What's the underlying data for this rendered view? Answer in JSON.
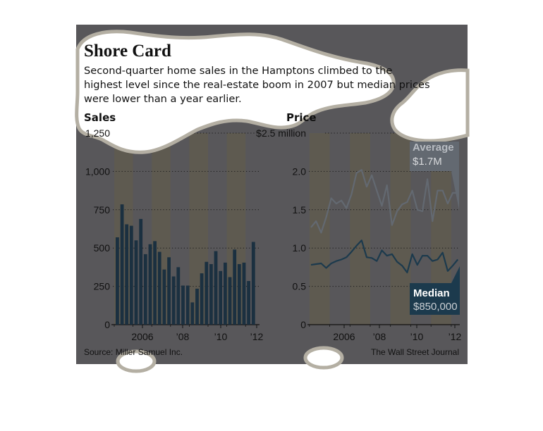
{
  "title": "Shore Card",
  "subtitle_lines": [
    "Second-quarter home sales in the Hamptons climbed to the",
    "highest level since the real-estate boom in 2007 but median prices",
    "were lower than a year earlier."
  ],
  "source": "Source: Miller Samuel Inc.",
  "credit": "The Wall Street Journal",
  "colors": {
    "panel_bg": "#58575a",
    "year_band": "#5e5a50",
    "bar": "#1b3040",
    "median_line": "#1c3a4d",
    "average_line": "#636971",
    "cloud": "#ffffff",
    "cloud_edge": "#b4afa3",
    "text": "#111111"
  },
  "x_tick_labels": [
    "2006",
    "’08",
    "’10",
    "’12"
  ],
  "chart_data": [
    {
      "type": "bar",
      "axis_title": "Sales",
      "y_tick_labels": [
        "0",
        "250",
        "500",
        "750",
        "1,000",
        "1,250"
      ],
      "ylim": [
        0,
        1250
      ],
      "grid": "dotted horizontal",
      "quarter_start": "2005 Q1",
      "quarter_end": "2012 Q2",
      "values": [
        570,
        785,
        655,
        645,
        550,
        690,
        460,
        525,
        545,
        475,
        360,
        440,
        315,
        375,
        255,
        255,
        145,
        235,
        335,
        410,
        395,
        480,
        350,
        405,
        310,
        490,
        395,
        405,
        285,
        540
      ]
    },
    {
      "type": "line",
      "axis_title": "Price",
      "y_tick_labels": [
        "0",
        "0.5",
        "1.0",
        "1.5",
        "2.0",
        "$2.5 million"
      ],
      "ylim": [
        0,
        2.5
      ],
      "grid": "dotted horizontal",
      "quarter_start": "2005 Q1",
      "quarter_end": "2012 Q2",
      "series": [
        {
          "name": "Average",
          "label": "Average",
          "value_label": "$1.7M",
          "values": [
            1.27,
            1.35,
            1.2,
            1.4,
            1.65,
            1.58,
            1.62,
            1.52,
            1.7,
            1.98,
            2.02,
            1.8,
            1.95,
            1.75,
            1.55,
            1.82,
            1.3,
            1.48,
            1.57,
            1.6,
            1.75,
            1.5,
            1.48,
            1.9,
            1.35,
            1.75,
            1.75,
            1.58,
            1.72,
            1.72
          ]
        },
        {
          "name": "Median",
          "label": "Median",
          "value_label": "$850,000",
          "values": [
            0.78,
            0.79,
            0.8,
            0.74,
            0.8,
            0.83,
            0.85,
            0.88,
            0.95,
            1.03,
            1.1,
            0.88,
            0.87,
            0.83,
            0.97,
            0.9,
            0.92,
            0.82,
            0.77,
            0.68,
            0.92,
            0.78,
            0.9,
            0.9,
            0.83,
            0.85,
            0.94,
            0.7,
            0.77,
            0.85
          ]
        }
      ]
    }
  ]
}
